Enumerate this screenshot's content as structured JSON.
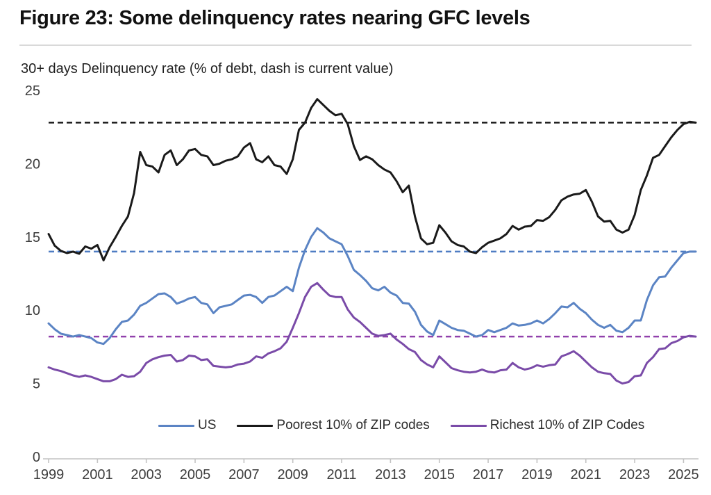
{
  "header": {
    "title": "Figure 23: Some delinquency rates nearing GFC levels"
  },
  "chart_data": {
    "type": "line",
    "title": "Figure 23: Some delinquency rates nearing GFC levels",
    "subtitle": "30+ days Delinquency rate (% of debt, dash is current value)",
    "xlabel": "",
    "ylabel": "30+ days Delinquency rate (% of debt)",
    "x_start": 1999.0,
    "x_step": 0.25,
    "x_tick_labels": [
      "1999",
      "2001",
      "2003",
      "2005",
      "2007",
      "2009",
      "2011",
      "2013",
      "2015",
      "2017",
      "2019",
      "2021",
      "2023",
      "2025"
    ],
    "y_ticks": [
      0,
      5,
      10,
      15,
      20,
      25
    ],
    "ylim": [
      0,
      25
    ],
    "xlim": [
      1999,
      2025.6
    ],
    "grid": false,
    "legend_position": "bottom-center",
    "dash_note": "dashed horizontal lines mark each series' current value",
    "series": [
      {
        "name": "US",
        "line_color": "#5b84c4",
        "dash_color": "#4f7dc3",
        "current_value_dash": 14.0,
        "values": [
          9.1,
          8.7,
          8.4,
          8.3,
          8.2,
          8.3,
          8.2,
          8.1,
          7.8,
          7.7,
          8.1,
          8.7,
          9.2,
          9.3,
          9.7,
          10.3,
          10.5,
          10.8,
          11.1,
          11.15,
          10.9,
          10.45,
          10.6,
          10.8,
          10.9,
          10.5,
          10.4,
          9.8,
          10.2,
          10.3,
          10.4,
          10.7,
          11.0,
          11.05,
          10.9,
          10.5,
          10.9,
          11.0,
          11.3,
          11.6,
          11.3,
          12.9,
          14.1,
          15.0,
          15.6,
          15.3,
          14.9,
          14.7,
          14.5,
          13.7,
          12.75,
          12.4,
          12.0,
          11.5,
          11.35,
          11.6,
          11.2,
          11.0,
          10.5,
          10.45,
          9.9,
          9.0,
          8.55,
          8.3,
          9.3,
          9.05,
          8.8,
          8.65,
          8.6,
          8.4,
          8.2,
          8.3,
          8.65,
          8.5,
          8.65,
          8.8,
          9.1,
          8.95,
          9.0,
          9.1,
          9.3,
          9.1,
          9.4,
          9.8,
          10.25,
          10.2,
          10.5,
          10.1,
          9.8,
          9.35,
          9.0,
          8.8,
          9.0,
          8.6,
          8.5,
          8.8,
          9.3,
          9.3,
          10.7,
          11.7,
          12.25,
          12.3,
          12.9,
          13.4,
          13.9,
          14.0,
          14.0
        ]
      },
      {
        "name": "Poorest 10% of ZIP codes",
        "line_color": "#1a1a1a",
        "dash_color": "#1a1a1a",
        "current_value_dash": 22.8,
        "values": [
          15.2,
          14.4,
          14.05,
          13.9,
          14.0,
          13.85,
          14.35,
          14.2,
          14.45,
          13.4,
          14.3,
          15.0,
          15.75,
          16.4,
          18.0,
          20.8,
          19.9,
          19.8,
          19.4,
          20.6,
          20.9,
          19.9,
          20.3,
          20.9,
          21.0,
          20.6,
          20.5,
          19.9,
          20.0,
          20.2,
          20.3,
          20.5,
          21.1,
          21.4,
          20.3,
          20.1,
          20.5,
          19.9,
          19.8,
          19.3,
          20.3,
          22.3,
          22.8,
          23.8,
          24.4,
          24.0,
          23.6,
          23.3,
          23.4,
          22.7,
          21.2,
          20.25,
          20.5,
          20.3,
          19.9,
          19.6,
          19.4,
          18.8,
          18.05,
          18.5,
          16.4,
          14.9,
          14.5,
          14.6,
          15.8,
          15.3,
          14.7,
          14.45,
          14.35,
          14.0,
          13.9,
          14.3,
          14.6,
          14.75,
          14.9,
          15.2,
          15.75,
          15.5,
          15.7,
          15.75,
          16.15,
          16.1,
          16.35,
          16.85,
          17.5,
          17.75,
          17.9,
          17.95,
          18.2,
          17.4,
          16.4,
          16.05,
          16.1,
          15.5,
          15.3,
          15.5,
          16.5,
          18.2,
          19.2,
          20.4,
          20.6,
          21.2,
          21.8,
          22.3,
          22.7,
          22.85,
          22.8
        ]
      },
      {
        "name": "Richest 10% of ZIP Codes",
        "line_color": "#7a4ba8",
        "dash_color": "#9141ac",
        "current_value_dash": 8.2,
        "values": [
          6.1,
          5.95,
          5.85,
          5.7,
          5.55,
          5.45,
          5.55,
          5.45,
          5.3,
          5.15,
          5.15,
          5.3,
          5.6,
          5.45,
          5.5,
          5.8,
          6.4,
          6.65,
          6.8,
          6.9,
          6.95,
          6.5,
          6.6,
          6.9,
          6.85,
          6.6,
          6.65,
          6.2,
          6.15,
          6.1,
          6.15,
          6.3,
          6.35,
          6.5,
          6.85,
          6.75,
          7.05,
          7.2,
          7.4,
          7.85,
          8.8,
          9.8,
          10.9,
          11.6,
          11.85,
          11.4,
          11.0,
          10.9,
          10.9,
          10.05,
          9.5,
          9.2,
          8.8,
          8.4,
          8.25,
          8.3,
          8.4,
          8.0,
          7.7,
          7.35,
          7.15,
          6.6,
          6.3,
          6.1,
          6.85,
          6.45,
          6.05,
          5.9,
          5.8,
          5.75,
          5.8,
          5.95,
          5.8,
          5.75,
          5.9,
          5.95,
          6.4,
          6.1,
          5.95,
          6.05,
          6.25,
          6.15,
          6.25,
          6.3,
          6.85,
          7.0,
          7.2,
          6.9,
          6.5,
          6.1,
          5.8,
          5.7,
          5.65,
          5.2,
          5.0,
          5.1,
          5.5,
          5.55,
          6.4,
          6.8,
          7.35,
          7.4,
          7.75,
          7.9,
          8.15,
          8.25,
          8.2
        ]
      }
    ],
    "axis_colors": {
      "axis_line": "#c3c3c3",
      "tick_label": "#3d3d3d"
    }
  }
}
